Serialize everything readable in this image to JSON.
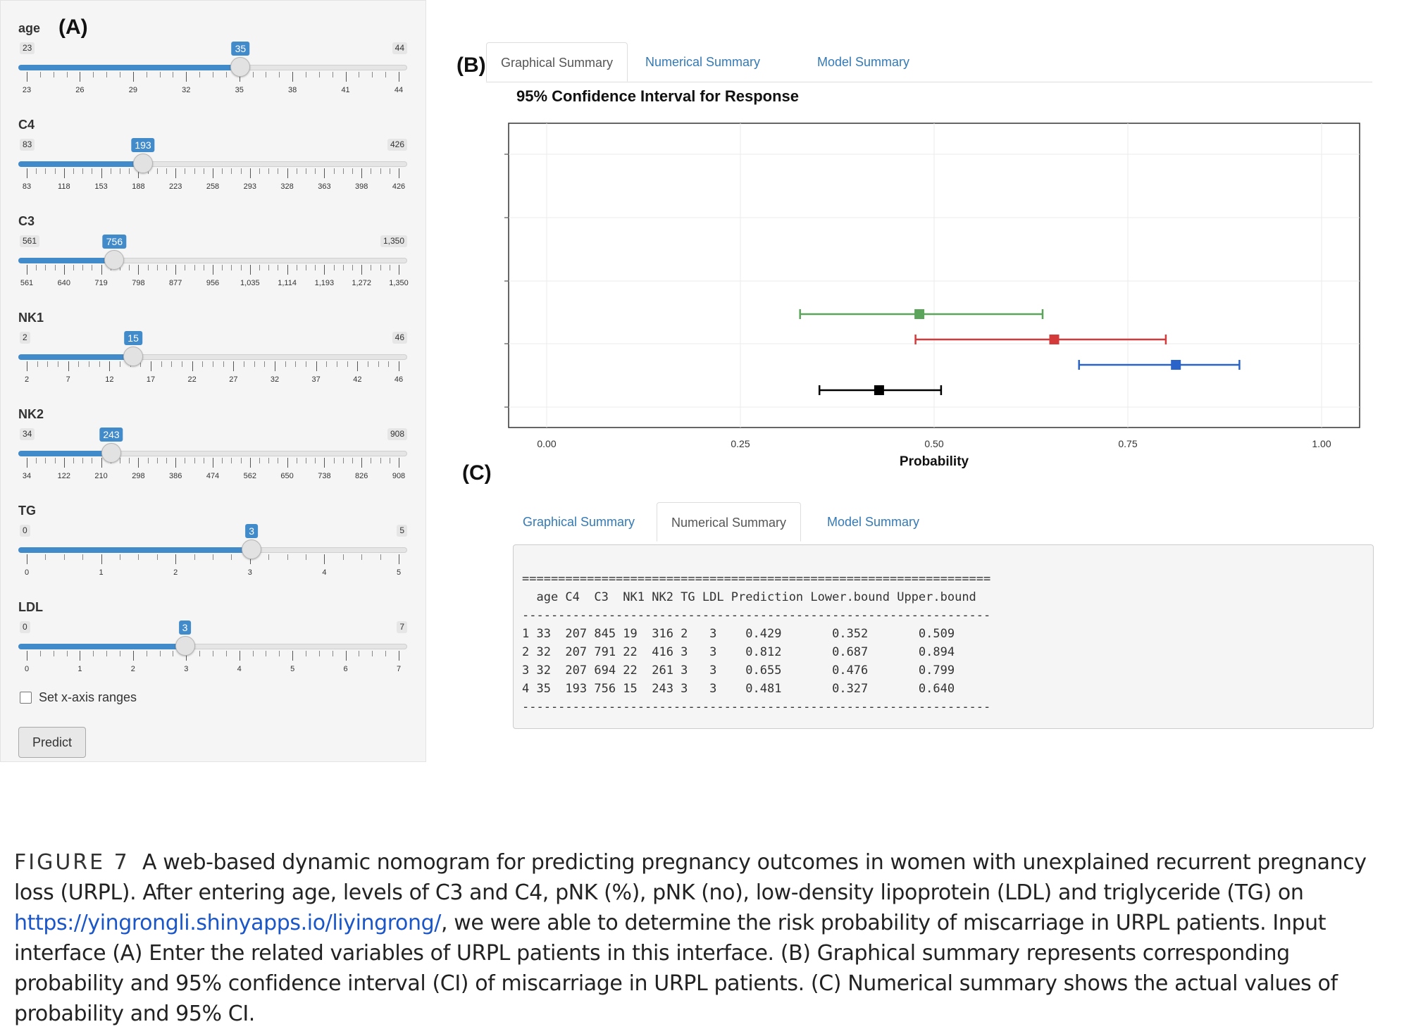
{
  "labels": {
    "a": "(A)",
    "b": "(B)",
    "c": "(C)"
  },
  "sliders": [
    {
      "name": "age",
      "min": "23",
      "max": "44",
      "value": "35",
      "min_num": 23,
      "max_num": 44,
      "value_num": 35,
      "ticks": [
        "23",
        "26",
        "29",
        "32",
        "35",
        "38",
        "41",
        "44"
      ]
    },
    {
      "name": "C4",
      "min": "83",
      "max": "426",
      "value": "193",
      "min_num": 83,
      "max_num": 426,
      "value_num": 193,
      "ticks": [
        "83",
        "118",
        "153",
        "188",
        "223",
        "258",
        "293",
        "328",
        "363",
        "398",
        "426"
      ]
    },
    {
      "name": "C3",
      "min": "561",
      "max": "1,350",
      "value": "756",
      "min_num": 561,
      "max_num": 1350,
      "value_num": 756,
      "ticks": [
        "561",
        "640",
        "719",
        "798",
        "877",
        "956",
        "1,035",
        "1,114",
        "1,193",
        "1,272",
        "1,350"
      ]
    },
    {
      "name": "NK1",
      "min": "2",
      "max": "46",
      "value": "15",
      "min_num": 2,
      "max_num": 46,
      "value_num": 15,
      "ticks": [
        "2",
        "7",
        "12",
        "17",
        "22",
        "27",
        "32",
        "37",
        "42",
        "46"
      ]
    },
    {
      "name": "NK2",
      "min": "34",
      "max": "908",
      "value": "243",
      "min_num": 34,
      "max_num": 908,
      "value_num": 243,
      "ticks": [
        "34",
        "122",
        "210",
        "298",
        "386",
        "474",
        "562",
        "650",
        "738",
        "826",
        "908"
      ]
    },
    {
      "name": "TG",
      "min": "0",
      "max": "5",
      "value": "3",
      "min_num": 0,
      "max_num": 5,
      "value_num": 3,
      "ticks": [
        "0",
        "1",
        "2",
        "3",
        "4",
        "5"
      ]
    },
    {
      "name": "LDL",
      "min": "0",
      "max": "7",
      "value": "3",
      "min_num": 0,
      "max_num": 7,
      "value_num": 3,
      "ticks": [
        "0",
        "1",
        "2",
        "3",
        "4",
        "5",
        "6",
        "7"
      ]
    }
  ],
  "checkbox": {
    "label": "Set x-axis ranges",
    "checked": false
  },
  "predict_label": "Predict",
  "tabs": [
    "Graphical Summary",
    "Numerical Summary",
    "Model Summary"
  ],
  "chart_data": {
    "type": "scatter",
    "title": "95% Confidence Interval for Response",
    "xlabel": "Probability",
    "ylabel": "",
    "xlim": [
      0,
      1
    ],
    "xticks": [
      "0.00",
      "0.25",
      "0.50",
      "0.75",
      "1.00"
    ],
    "grid": true,
    "series": [
      {
        "color": "#5aa55a",
        "estimate": 0.481,
        "lower": 0.327,
        "upper": 0.64
      },
      {
        "color": "#d43a3a",
        "estimate": 0.655,
        "lower": 0.476,
        "upper": 0.799
      },
      {
        "color": "#2a64c8",
        "estimate": 0.812,
        "lower": 0.687,
        "upper": 0.894
      },
      {
        "color": "#000000",
        "estimate": 0.429,
        "lower": 0.352,
        "upper": 0.509
      }
    ]
  },
  "numerical": {
    "rule": "=================================================================",
    "header": "  age C4  C3  NK1 NK2 TG LDL Prediction Lower.bound Upper.bound",
    "dash": "-----------------------------------------------------------------",
    "rows": [
      "1 33  207 845 19  316 2   3    0.429       0.352       0.509",
      "2 32  207 791 22  416 3   3    0.812       0.687       0.894",
      "3 32  207 694 22  261 3   3    0.655       0.476       0.799",
      "4 35  193 756 15  243 3   3    0.481       0.327       0.640"
    ]
  },
  "caption": {
    "figno": "FIGURE 7",
    "text1": "A web-based dynamic nomogram for predicting pregnancy outcomes in women with unexplained recurrent pregnancy loss (URPL). After entering age, levels of C3 and C4, pNK (%), pNK (no), low-density lipoprotein (LDL) and triglyceride (TG) on ",
    "link": "https://yingrongli.shinyapps.io/liyingrong/",
    "text2": ", we were able to determine the risk probability of miscarriage in URPL patients. Input interface (A) Enter the related variables of URPL patients in this interface. (B) Graphical summary represents corresponding probability and 95% confidence interval (CI) of miscarriage in URPL patients. (C) Numerical summary shows the actual values of probability and 95% CI."
  }
}
